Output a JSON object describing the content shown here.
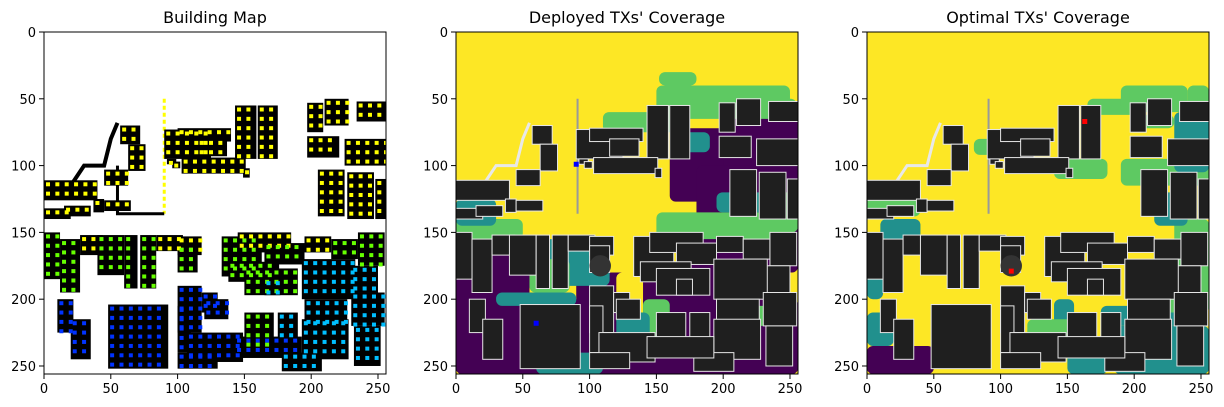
{
  "chart_data": [
    {
      "type": "heatmap",
      "title": "Building Map",
      "xlim": [
        0,
        256
      ],
      "ylim": [
        256,
        0
      ],
      "xticks": [
        "0",
        "50",
        "100",
        "150",
        "200",
        "250"
      ],
      "yticks": [
        "0",
        "50",
        "100",
        "150",
        "200",
        "250"
      ],
      "background": "#ffffff",
      "building_color": "#000000",
      "marker_colors": [
        "#ffff00",
        "#66ff00",
        "#00bfff",
        "#0033ff"
      ]
    },
    {
      "type": "heatmap",
      "title": "Deployed TXs' Coverage",
      "xlim": [
        0,
        256
      ],
      "ylim": [
        256,
        0
      ],
      "xticks": [
        "0",
        "50",
        "100",
        "150",
        "200",
        "250"
      ],
      "yticks": [
        "0",
        "50",
        "100",
        "150",
        "200",
        "250"
      ],
      "colormap": [
        "#440154",
        "#21908d",
        "#5ec962",
        "#fde725"
      ],
      "building_color": "#1f1f1f",
      "transmitters": [
        {
          "x": 90,
          "y": 99,
          "color": "#0000ff"
        },
        {
          "x": 60,
          "y": 218,
          "color": "#0000ff"
        }
      ]
    },
    {
      "type": "heatmap",
      "title": "Optimal TXs' Coverage",
      "xlim": [
        0,
        256
      ],
      "ylim": [
        256,
        0
      ],
      "xticks": [
        "0",
        "50",
        "100",
        "150",
        "200",
        "250"
      ],
      "yticks": [
        "0",
        "50",
        "100",
        "150",
        "200",
        "250"
      ],
      "colormap": [
        "#440154",
        "#21908d",
        "#5ec962",
        "#fde725"
      ],
      "building_color": "#1f1f1f",
      "transmitters": [
        {
          "x": 163,
          "y": 67,
          "color": "#ff0000"
        },
        {
          "x": 108,
          "y": 179,
          "color": "#ff0000"
        }
      ]
    }
  ]
}
